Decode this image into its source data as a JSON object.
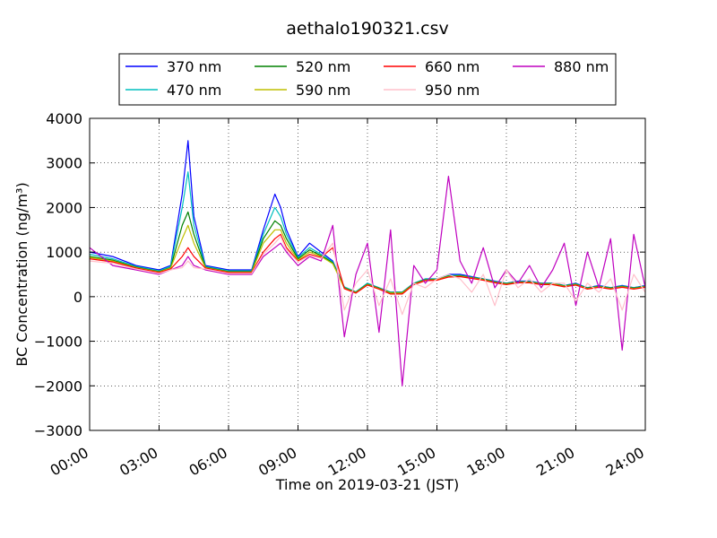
{
  "chart_data": {
    "type": "line",
    "title": "aethalo190321.csv",
    "xlabel": "Time on 2019-03-21 (JST)",
    "ylabel": "BC Concentration (ng/m³)",
    "x_range_hours": [
      0,
      24
    ],
    "x_tick_labels": [
      "00:00",
      "03:00",
      "06:00",
      "09:00",
      "12:00",
      "15:00",
      "18:00",
      "21:00",
      "24:00"
    ],
    "ylim": [
      -3000,
      4000
    ],
    "y_ticks": [
      -3000,
      -2000,
      -1000,
      0,
      1000,
      2000,
      3000,
      4000
    ],
    "y_tick_labels": [
      "−3000",
      "−2000",
      "−1000",
      "0",
      "1000",
      "2000",
      "3000",
      "4000"
    ],
    "grid": true,
    "legend_position": "top-center",
    "x": [
      "00:00",
      "01:00",
      "02:00",
      "03:00",
      "03:30",
      "04:00",
      "04:15",
      "04:30",
      "05:00",
      "06:00",
      "07:00",
      "07:30",
      "08:00",
      "08:15",
      "08:30",
      "09:00",
      "09:30",
      "10:00",
      "10:30",
      "11:00",
      "11:30",
      "12:00",
      "12:30",
      "13:00",
      "13:30",
      "14:00",
      "14:30",
      "15:00",
      "15:30",
      "16:00",
      "16:30",
      "17:00",
      "17:30",
      "18:00",
      "18:30",
      "19:00",
      "19:30",
      "20:00",
      "20:30",
      "21:00",
      "21:30",
      "22:00",
      "22:30",
      "23:00",
      "23:30",
      "24:00"
    ],
    "series": [
      {
        "name": "370 nm",
        "color": "#0000ff",
        "values": [
          1000,
          900,
          700,
          600,
          700,
          2300,
          3500,
          1800,
          700,
          600,
          600,
          1500,
          2300,
          2000,
          1500,
          900,
          1200,
          1000,
          800,
          200,
          100,
          300,
          200,
          100,
          100,
          300,
          400,
          400,
          500,
          500,
          450,
          400,
          350,
          300,
          350,
          350,
          300,
          300,
          250,
          300,
          200,
          250,
          200,
          250,
          200,
          250
        ]
      },
      {
        "name": "470 nm",
        "color": "#00bfbf",
        "values": [
          950,
          850,
          680,
          580,
          680,
          2000,
          2800,
          1600,
          680,
          580,
          580,
          1400,
          2000,
          1800,
          1400,
          880,
          1100,
          950,
          780,
          220,
          110,
          300,
          200,
          100,
          100,
          300,
          400,
          400,
          480,
          480,
          440,
          400,
          340,
          300,
          340,
          340,
          300,
          300,
          250,
          290,
          200,
          240,
          200,
          240,
          200,
          240
        ]
      },
      {
        "name": "520 nm",
        "color": "#008000",
        "values": [
          900,
          820,
          660,
          560,
          650,
          1600,
          1900,
          1400,
          660,
          560,
          560,
          1300,
          1700,
          1600,
          1300,
          850,
          1050,
          920,
          760,
          200,
          100,
          280,
          190,
          90,
          90,
          290,
          380,
          390,
          460,
          470,
          430,
          390,
          330,
          290,
          330,
          330,
          290,
          290,
          240,
          280,
          190,
          230,
          190,
          230,
          190,
          230
        ]
      },
      {
        "name": "590 nm",
        "color": "#bfbf00",
        "values": [
          880,
          800,
          650,
          550,
          640,
          1300,
          1600,
          1200,
          650,
          550,
          550,
          1200,
          1500,
          1500,
          1200,
          820,
          1000,
          900,
          740,
          190,
          90,
          270,
          180,
          80,
          80,
          280,
          370,
          380,
          450,
          460,
          420,
          380,
          320,
          280,
          320,
          320,
          280,
          280,
          230,
          270,
          180,
          220,
          180,
          220,
          180,
          220
        ]
      },
      {
        "name": "660 nm",
        "color": "#ff0000",
        "values": [
          850,
          780,
          640,
          540,
          620,
          900,
          1100,
          900,
          640,
          540,
          540,
          1000,
          1300,
          1400,
          1100,
          800,
          950,
          880,
          1100,
          180,
          80,
          260,
          170,
          60,
          60,
          270,
          360,
          370,
          440,
          450,
          410,
          370,
          310,
          270,
          310,
          310,
          270,
          270,
          220,
          260,
          170,
          210,
          170,
          210,
          170,
          210
        ]
      },
      {
        "name": "880 nm",
        "color": "#bf00bf",
        "values": [
          1100,
          700,
          600,
          500,
          600,
          700,
          900,
          700,
          600,
          500,
          500,
          900,
          1100,
          1200,
          1000,
          700,
          900,
          800,
          1600,
          -900,
          500,
          1200,
          -800,
          1500,
          -2000,
          700,
          300,
          600,
          2700,
          800,
          300,
          1100,
          200,
          600,
          300,
          700,
          200,
          600,
          1200,
          -200,
          1000,
          200,
          1300,
          -1200,
          1400,
          200
        ]
      },
      {
        "name": "950 nm",
        "color": "#ffc0cb",
        "values": [
          800,
          750,
          620,
          520,
          600,
          650,
          800,
          650,
          620,
          520,
          520,
          950,
          1200,
          1350,
          1050,
          780,
          920,
          860,
          1200,
          -300,
          300,
          600,
          -200,
          400,
          -400,
          300,
          200,
          400,
          500,
          400,
          100,
          500,
          -200,
          600,
          200,
          400,
          100,
          300,
          300,
          -100,
          300,
          100,
          400,
          -300,
          500,
          100
        ]
      }
    ]
  }
}
